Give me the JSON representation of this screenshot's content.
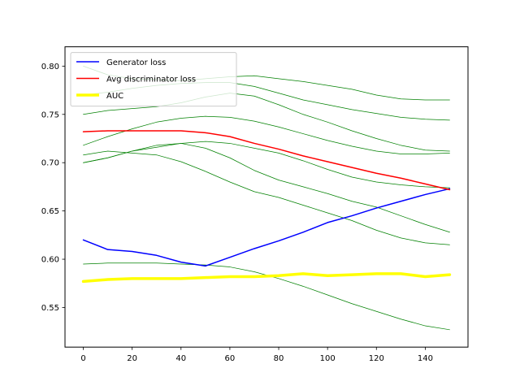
{
  "chart_data": {
    "type": "line",
    "xlim": [
      -7.5,
      157.5
    ],
    "ylim": [
      0.509,
      0.82
    ],
    "x_ticks": [
      0,
      20,
      40,
      60,
      80,
      100,
      120,
      140
    ],
    "y_ticks": [
      0.55,
      0.6,
      0.65,
      0.7,
      0.75,
      0.8
    ],
    "grid": false,
    "legend_position": "top-left",
    "legend": [
      {
        "label": "Generator loss",
        "color": "#0000ff"
      },
      {
        "label": "Avg discriminator loss",
        "color": "#ff0000"
      },
      {
        "label": "AUC",
        "color": "#ffff00"
      }
    ],
    "x": [
      0,
      10,
      20,
      30,
      40,
      50,
      60,
      70,
      80,
      90,
      100,
      110,
      120,
      130,
      140,
      150
    ],
    "series": [
      {
        "name": "Generator loss",
        "color": "#0000ff",
        "values": [
          0.62,
          0.61,
          0.608,
          0.604,
          0.597,
          0.593,
          0.602,
          0.611,
          0.619,
          0.628,
          0.638,
          0.645,
          0.653,
          0.66,
          0.667,
          0.673
        ]
      },
      {
        "name": "Avg discriminator loss",
        "color": "#ff0000",
        "values": [
          0.732,
          0.733,
          0.733,
          0.733,
          0.733,
          0.731,
          0.727,
          0.72,
          0.714,
          0.707,
          0.701,
          0.695,
          0.689,
          0.684,
          0.678,
          0.672
        ]
      },
      {
        "name": "AUC",
        "color": "#ffff00",
        "values": [
          0.577,
          0.579,
          0.58,
          0.58,
          0.58,
          0.581,
          0.582,
          0.582,
          0.583,
          0.585,
          0.583,
          0.584,
          0.585,
          0.585,
          0.582,
          0.584
        ]
      },
      {
        "color": "#008000",
        "values": [
          0.8,
          0.791,
          0.787,
          0.786,
          0.785,
          0.787,
          0.789,
          0.79,
          0.787,
          0.784,
          0.78,
          0.776,
          0.77,
          0.766,
          0.765,
          0.765
        ]
      },
      {
        "color": "#008000",
        "values": [
          0.77,
          0.773,
          0.777,
          0.78,
          0.782,
          0.783,
          0.783,
          0.779,
          0.772,
          0.765,
          0.76,
          0.755,
          0.751,
          0.747,
          0.745,
          0.744
        ]
      },
      {
        "color": "#008000",
        "values": [
          0.75,
          0.754,
          0.756,
          0.758,
          0.762,
          0.768,
          0.772,
          0.769,
          0.76,
          0.75,
          0.742,
          0.733,
          0.725,
          0.718,
          0.713,
          0.712
        ]
      },
      {
        "color": "#008000",
        "values": [
          0.718,
          0.727,
          0.735,
          0.742,
          0.746,
          0.748,
          0.747,
          0.743,
          0.737,
          0.73,
          0.723,
          0.717,
          0.712,
          0.709,
          0.709,
          0.71
        ]
      },
      {
        "color": "#008000",
        "values": [
          0.7,
          0.705,
          0.712,
          0.716,
          0.72,
          0.722,
          0.72,
          0.715,
          0.71,
          0.702,
          0.693,
          0.685,
          0.68,
          0.677,
          0.675,
          0.674
        ]
      },
      {
        "color": "#008000",
        "values": [
          0.7,
          0.705,
          0.712,
          0.718,
          0.72,
          0.715,
          0.705,
          0.692,
          0.682,
          0.675,
          0.668,
          0.66,
          0.654,
          0.645,
          0.636,
          0.628
        ]
      },
      {
        "color": "#008000",
        "values": [
          0.708,
          0.712,
          0.71,
          0.708,
          0.701,
          0.691,
          0.68,
          0.67,
          0.664,
          0.656,
          0.648,
          0.64,
          0.63,
          0.622,
          0.617,
          0.615
        ]
      },
      {
        "color": "#008000",
        "values": [
          0.595,
          0.596,
          0.596,
          0.596,
          0.595,
          0.594,
          0.592,
          0.587,
          0.58,
          0.572,
          0.563,
          0.554,
          0.546,
          0.538,
          0.531,
          0.527
        ]
      }
    ]
  }
}
